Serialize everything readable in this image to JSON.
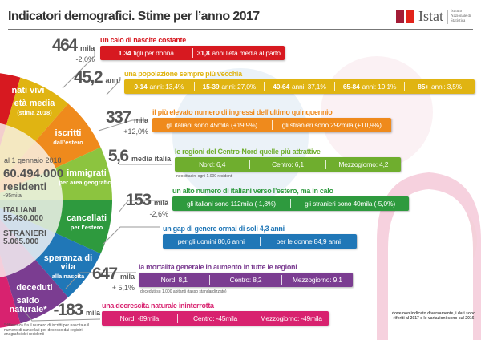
{
  "title": "Indicatori demografici. Stime per l’anno 2017",
  "logo": {
    "name": "Istat",
    "subtitle": "Istituto Nazionale di Statistica",
    "colors": [
      "#a31c36",
      "#e2231a"
    ]
  },
  "center": {
    "date": "al 1 gennaio 2018",
    "residents": "60.494.000",
    "residents_label": "residenti",
    "residents_delta": "-95mila",
    "italians_label": "ITALIANI",
    "italians": "55.430.000",
    "foreigners_label": "STRANIERI",
    "foreigners": "5.065.000"
  },
  "wheel": [
    {
      "label": "nati vivi",
      "sub": "",
      "color": "#d71920",
      "inner": "#f2c1c2"
    },
    {
      "label": "età media",
      "sub": "(stima 2018)",
      "color": "#e0b412",
      "inner": "#f4e6b0"
    },
    {
      "label": "iscritti",
      "sub": "dall’estero",
      "color": "#ef8a1c",
      "inner": "#f9dcb8"
    },
    {
      "label": "immigrati",
      "sub": "per area geografica",
      "color": "#8cc43f",
      "inner": "#dcecc4"
    },
    {
      "label": "cancellati",
      "sub": "per l’estero",
      "color": "#2e9a3e",
      "inner": "#c4e0c6"
    },
    {
      "label": "speranza di vita",
      "sub": "alla nascita",
      "color": "#2077b7",
      "inner": "#c2d8ec"
    },
    {
      "label": "deceduti",
      "sub": "",
      "color": "#7b3d91",
      "inner": "#dccbe3"
    },
    {
      "label": "saldo naturale*",
      "sub": "",
      "color": "#d8226f",
      "inner": "#f4c1d6"
    }
  ],
  "rows": [
    {
      "value": "464",
      "unit": "mila",
      "delta": "-2,0%",
      "heading": "un calo di nascite costante",
      "color": "#d71920",
      "cells": [
        [
          "1,34",
          "figli per donna"
        ],
        [
          "31,8",
          "anni l’età media al parto"
        ]
      ]
    },
    {
      "value": "45,2",
      "unit": "anni",
      "delta": "",
      "heading": "una popolazione sempre più vecchia",
      "color": "#e0b412",
      "cells": [
        [
          "0-14",
          "anni: 13,4%"
        ],
        [
          "15-39",
          "anni: 27,0%"
        ],
        [
          "40-64",
          "anni: 37,1%"
        ],
        [
          "65-84",
          "anni: 19,1%"
        ],
        [
          "85+",
          "anni: 3,5%"
        ]
      ]
    },
    {
      "value": "337",
      "unit": "mila",
      "delta": "+12,0%",
      "heading": "il più elevato numero di ingressi dell’ultimo quinquennio",
      "color": "#ef8a1c",
      "cells": [
        [
          "",
          "gli italiani sono 45mila (+19,9%)"
        ],
        [
          "",
          "gli stranieri sono 292mila (+10,9%)"
        ]
      ]
    },
    {
      "value": "5,6",
      "unit": "media italia",
      "delta": "",
      "heading": "le regioni del Centro-Nord quelle più attrattive",
      "color": "#6fae2e",
      "cells": [
        [
          "",
          "Nord: 6,4"
        ],
        [
          "",
          "Centro: 6,1"
        ],
        [
          "",
          "Mezzogiorno: 4,2"
        ]
      ],
      "note": "neocittadini ogni 1.000 residenti"
    },
    {
      "value": "153",
      "unit": "mila",
      "delta": "-2,6%",
      "heading": "un alto numero di italiani verso l’estero, ma in calo",
      "color": "#2e9a3e",
      "cells": [
        [
          "",
          "gli italiani sono 112mila (-1,8%)"
        ],
        [
          "",
          "gli stranieri sono 40mila (-5,0%)"
        ]
      ]
    },
    {
      "value": "",
      "unit": "",
      "delta": "",
      "heading": "un gap di genere ormai di soli 4,3 anni",
      "color": "#2077b7",
      "cells": [
        [
          "",
          "per gli uomini 80,6 anni"
        ],
        [
          "",
          "per le donne 84,9 anni"
        ]
      ]
    },
    {
      "value": "647",
      "unit": "mila",
      "delta": "+ 5,1%",
      "heading": "la mortalità generale in aumento in tutte le regioni",
      "color": "#7b3d91",
      "cells": [
        [
          "",
          "Nord: 8,1"
        ],
        [
          "",
          "Centro: 8,2"
        ],
        [
          "",
          "Mezzogiorno: 9,1"
        ]
      ],
      "note": "deceduti su 1.000 abitanti (tasso standardizzato)"
    },
    {
      "value": "-183",
      "unit": "mila",
      "delta": "",
      "heading": "una decrescita naturale ininterrotta",
      "color": "#d8226f",
      "cells": [
        [
          "",
          "Nord: -89mila"
        ],
        [
          "",
          "Centro: -45mila"
        ],
        [
          "",
          "Mezzogiorno: -49mila"
        ]
      ]
    }
  ],
  "footnote": "*differenza fra il numero di iscritti per nascita e il numero di cancellati per decesso dai registri anagrafici dei residenti",
  "side_note": "dove non indicato diversamente, i dati sono riferiti al 2017 e le variazioni sono sul 2016"
}
